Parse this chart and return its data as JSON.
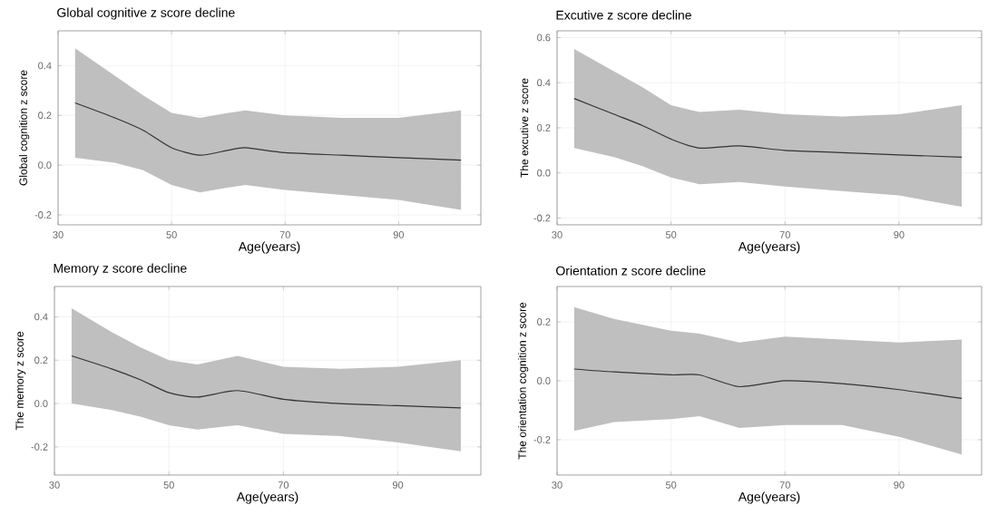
{
  "chart_data": [
    {
      "type": "line",
      "title": "Global cognitive z score decline",
      "xlabel": "Age(years)",
      "ylabel": "Global cognition z score",
      "grid": true,
      "xlim": [
        30,
        104.5
      ],
      "ylim": [
        -0.24,
        0.54
      ],
      "xticks": [
        30,
        50,
        70,
        90
      ],
      "yticks": [
        {
          "value": -0.2,
          "label": "-0.2"
        },
        {
          "value": 0,
          "label": "0.0"
        },
        {
          "value": 0.2,
          "label": "0.2"
        },
        {
          "value": 0.4,
          "label": "0.4"
        }
      ],
      "series": [
        {
          "color": "#333333",
          "x": [
            33,
            40,
            45,
            50,
            55,
            60,
            63,
            70,
            80,
            90,
            101
          ],
          "values": [
            0.25,
            0.19,
            0.14,
            0.07,
            0.04,
            0.06,
            0.07,
            0.05,
            0.04,
            0.03,
            0.02
          ],
          "lower": [
            0.03,
            0.01,
            -0.02,
            -0.08,
            -0.11,
            -0.09,
            -0.08,
            -0.1,
            -0.12,
            -0.14,
            -0.18
          ],
          "upper": [
            0.47,
            0.36,
            0.28,
            0.21,
            0.19,
            0.21,
            0.22,
            0.2,
            0.19,
            0.19,
            0.22
          ]
        }
      ]
    },
    {
      "type": "line",
      "title": "Excutive z score decline",
      "xlabel": "Age(years)",
      "ylabel": "The excutive z score",
      "grid": true,
      "xlim": [
        30,
        104.5
      ],
      "ylim": [
        -0.23,
        0.63
      ],
      "xticks": [
        30,
        50,
        70,
        90
      ],
      "yticks": [
        {
          "value": -0.2,
          "label": "-0.2"
        },
        {
          "value": 0,
          "label": "0.0"
        },
        {
          "value": 0.2,
          "label": "0.2"
        },
        {
          "value": 0.4,
          "label": "0.4"
        },
        {
          "value": 0.6,
          "label": "0.6"
        }
      ],
      "series": [
        {
          "color": "#333333",
          "x": [
            33,
            40,
            45,
            50,
            55,
            62,
            70,
            80,
            90,
            101
          ],
          "values": [
            0.33,
            0.26,
            0.21,
            0.15,
            0.11,
            0.12,
            0.1,
            0.09,
            0.08,
            0.07
          ],
          "lower": [
            0.11,
            0.07,
            0.03,
            -0.02,
            -0.05,
            -0.04,
            -0.06,
            -0.08,
            -0.1,
            -0.15
          ],
          "upper": [
            0.55,
            0.45,
            0.38,
            0.3,
            0.27,
            0.28,
            0.26,
            0.25,
            0.26,
            0.3
          ]
        }
      ]
    },
    {
      "type": "line",
      "title": "Memory z score decline",
      "xlabel": "Age(years)",
      "ylabel": "The memory z score",
      "grid": true,
      "xlim": [
        30,
        104.5
      ],
      "ylim": [
        -0.33,
        0.54
      ],
      "xticks": [
        30,
        50,
        70,
        90
      ],
      "yticks": [
        {
          "value": -0.2,
          "label": "-0.2"
        },
        {
          "value": 0,
          "label": "0.0"
        },
        {
          "value": 0.2,
          "label": "0.2"
        },
        {
          "value": 0.4,
          "label": "0.4"
        }
      ],
      "series": [
        {
          "color": "#333333",
          "x": [
            33,
            40,
            45,
            50,
            55,
            62,
            70,
            80,
            90,
            101
          ],
          "values": [
            0.22,
            0.16,
            0.11,
            0.05,
            0.03,
            0.06,
            0.02,
            0.0,
            -0.01,
            -0.02
          ],
          "lower": [
            0.0,
            -0.03,
            -0.06,
            -0.1,
            -0.12,
            -0.1,
            -0.14,
            -0.15,
            -0.18,
            -0.22
          ],
          "upper": [
            0.44,
            0.33,
            0.26,
            0.2,
            0.18,
            0.22,
            0.17,
            0.16,
            0.17,
            0.2
          ]
        }
      ]
    },
    {
      "type": "line",
      "title": "Orientation z score decline",
      "xlabel": "Age(years)",
      "ylabel": "The orientation cognition z score",
      "grid": true,
      "xlim": [
        30,
        104.5
      ],
      "ylim": [
        -0.32,
        0.32
      ],
      "xticks": [
        30,
        50,
        70,
        90
      ],
      "yticks": [
        {
          "value": -0.2,
          "label": "-0.2"
        },
        {
          "value": 0,
          "label": "0.0"
        },
        {
          "value": 0.2,
          "label": "0.2"
        }
      ],
      "series": [
        {
          "color": "#333333",
          "x": [
            33,
            40,
            50,
            55,
            62,
            70,
            80,
            90,
            101
          ],
          "values": [
            0.04,
            0.03,
            0.02,
            0.02,
            -0.02,
            0.0,
            -0.01,
            -0.03,
            -0.06
          ],
          "lower": [
            -0.17,
            -0.14,
            -0.13,
            -0.12,
            -0.16,
            -0.15,
            -0.15,
            -0.19,
            -0.25
          ],
          "upper": [
            0.25,
            0.21,
            0.17,
            0.16,
            0.13,
            0.15,
            0.14,
            0.13,
            0.14
          ]
        }
      ]
    }
  ]
}
